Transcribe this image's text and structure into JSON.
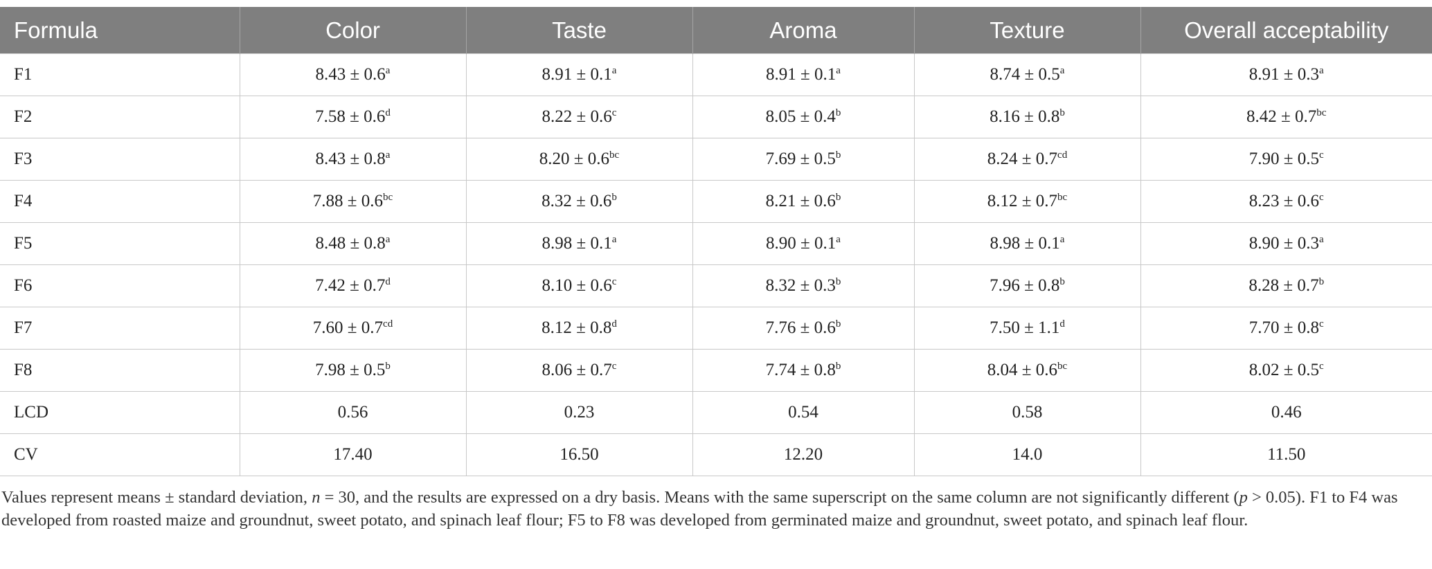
{
  "table": {
    "header": [
      "Formula",
      "Color",
      "Taste",
      "Aroma",
      "Texture",
      "Overall acceptability"
    ],
    "rows": [
      [
        "F1",
        {
          "text": "8.43 ± 0.6",
          "sup": "a"
        },
        {
          "text": "8.91 ± 0.1",
          "sup": "a"
        },
        {
          "text": "8.91 ± 0.1",
          "sup": "a"
        },
        {
          "text": "8.74 ± 0.5",
          "sup": "a"
        },
        {
          "text": "8.91 ± 0.3",
          "sup": "a"
        }
      ],
      [
        "F2",
        {
          "text": "7.58 ± 0.6",
          "sup": "d"
        },
        {
          "text": "8.22 ± 0.6",
          "sup": "c"
        },
        {
          "text": "8.05 ± 0.4",
          "sup": "b"
        },
        {
          "text": "8.16 ± 0.8",
          "sup": "b"
        },
        {
          "text": "8.42 ± 0.7",
          "sup": "bc"
        }
      ],
      [
        "F3",
        {
          "text": "8.43 ± 0.8",
          "sup": "a"
        },
        {
          "text": "8.20 ± 0.6",
          "sup": "bc"
        },
        {
          "text": "7.69 ± 0.5",
          "sup": "b"
        },
        {
          "text": "8.24 ± 0.7",
          "sup": "cd"
        },
        {
          "text": "7.90 ± 0.5",
          "sup": "c"
        }
      ],
      [
        "F4",
        {
          "text": "7.88 ± 0.6",
          "sup": "bc"
        },
        {
          "text": "8.32 ± 0.6",
          "sup": "b"
        },
        {
          "text": "8.21 ± 0.6",
          "sup": "b"
        },
        {
          "text": "8.12 ± 0.7",
          "sup": "bc"
        },
        {
          "text": "8.23 ± 0.6",
          "sup": "c"
        }
      ],
      [
        "F5",
        {
          "text": "8.48 ± 0.8",
          "sup": "a"
        },
        {
          "text": "8.98 ± 0.1",
          "sup": "a"
        },
        {
          "text": "8.90 ± 0.1",
          "sup": "a"
        },
        {
          "text": "8.98 ± 0.1",
          "sup": "a"
        },
        {
          "text": "8.90 ± 0.3",
          "sup": "a"
        }
      ],
      [
        "F6",
        {
          "text": "7.42 ± 0.7",
          "sup": "d"
        },
        {
          "text": "8.10 ± 0.6",
          "sup": "c"
        },
        {
          "text": "8.32 ± 0.3",
          "sup": "b"
        },
        {
          "text": "7.96 ± 0.8",
          "sup": "b"
        },
        {
          "text": "8.28 ± 0.7",
          "sup": "b"
        }
      ],
      [
        "F7",
        {
          "text": "7.60 ± 0.7",
          "sup": "cd"
        },
        {
          "text": "8.12 ± 0.8",
          "sup": "d"
        },
        {
          "text": "7.76 ± 0.6",
          "sup": "b"
        },
        {
          "text": "7.50 ± 1.1",
          "sup": "d"
        },
        {
          "text": "7.70 ± 0.8",
          "sup": "c"
        }
      ],
      [
        "F8",
        {
          "text": "7.98 ± 0.5",
          "sup": "b"
        },
        {
          "text": "8.06 ± 0.7",
          "sup": "c"
        },
        {
          "text": "7.74 ± 0.8",
          "sup": "b"
        },
        {
          "text": "8.04 ± 0.6",
          "sup": "bc"
        },
        {
          "text": "8.02 ± 0.5",
          "sup": "c"
        }
      ],
      [
        "LCD",
        "0.56",
        "0.23",
        "0.54",
        "0.58",
        "0.46"
      ],
      [
        "CV",
        "17.40",
        "16.50",
        "12.20",
        "14.0",
        "11.50"
      ]
    ]
  },
  "footnote": [
    "Values represent means ± standard deviation, ",
    "n",
    " = 30, and the results are expressed on a dry basis. Means with the same superscript on the same column are not significantly different (",
    "p",
    " > 0.05). F1 to F4 was developed from roasted maize and groundnut, sweet potato, and spinach leaf flour; F5 to F8 was developed from germinated maize and groundnut, sweet potato, and spinach leaf flour."
  ]
}
